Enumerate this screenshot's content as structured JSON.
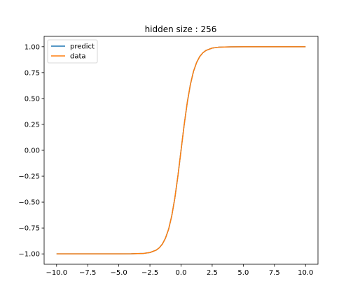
{
  "chart_data": {
    "type": "line",
    "title": "hidden size : 256",
    "xlabel": "",
    "ylabel": "",
    "xlim": [
      -11,
      11
    ],
    "ylim": [
      -1.1,
      1.1
    ],
    "x_ticks": [
      -10.0,
      -7.5,
      -5.0,
      -2.5,
      0.0,
      2.5,
      5.0,
      7.5,
      10.0
    ],
    "x_tick_labels": [
      "−10.0",
      "−7.5",
      "−5.0",
      "−2.5",
      "0.0",
      "2.5",
      "5.0",
      "7.5",
      "10.0"
    ],
    "y_ticks": [
      1.0,
      0.75,
      0.5,
      0.25,
      0.0,
      -0.25,
      -0.5,
      -0.75,
      -1.0
    ],
    "y_tick_labels": [
      "1.00",
      "0.75",
      "0.50",
      "0.25",
      "0.00",
      "−0.25",
      "−0.50",
      "−0.75",
      "−1.00"
    ],
    "legend_position": "top-left",
    "grid": false,
    "x": [
      -10.0,
      -8.0,
      -6.0,
      -5.0,
      -4.0,
      -3.0,
      -2.5,
      -2.0,
      -1.75,
      -1.5,
      -1.25,
      -1.0,
      -0.75,
      -0.5,
      -0.25,
      0.0,
      0.25,
      0.5,
      0.75,
      1.0,
      1.25,
      1.5,
      1.75,
      2.0,
      2.5,
      3.0,
      4.0,
      5.0,
      6.0,
      8.0,
      10.0
    ],
    "series": [
      {
        "name": "predict",
        "color": "#1f77b4",
        "values": [
          -1.0,
          -1.0,
          -1.0,
          -1.0,
          -0.999,
          -0.995,
          -0.987,
          -0.964,
          -0.941,
          -0.905,
          -0.848,
          -0.762,
          -0.635,
          -0.462,
          -0.245,
          0.0,
          0.245,
          0.462,
          0.635,
          0.762,
          0.848,
          0.905,
          0.941,
          0.964,
          0.987,
          0.995,
          0.999,
          1.0,
          1.0,
          1.0,
          1.0
        ]
      },
      {
        "name": "data",
        "color": "#ff7f0e",
        "values": [
          -1.0,
          -1.0,
          -1.0,
          -1.0,
          -0.999,
          -0.995,
          -0.987,
          -0.964,
          -0.941,
          -0.905,
          -0.848,
          -0.762,
          -0.635,
          -0.462,
          -0.245,
          0.0,
          0.245,
          0.462,
          0.635,
          0.762,
          0.848,
          0.905,
          0.941,
          0.964,
          0.987,
          0.995,
          0.999,
          1.0,
          1.0,
          1.0,
          1.0
        ]
      }
    ]
  }
}
